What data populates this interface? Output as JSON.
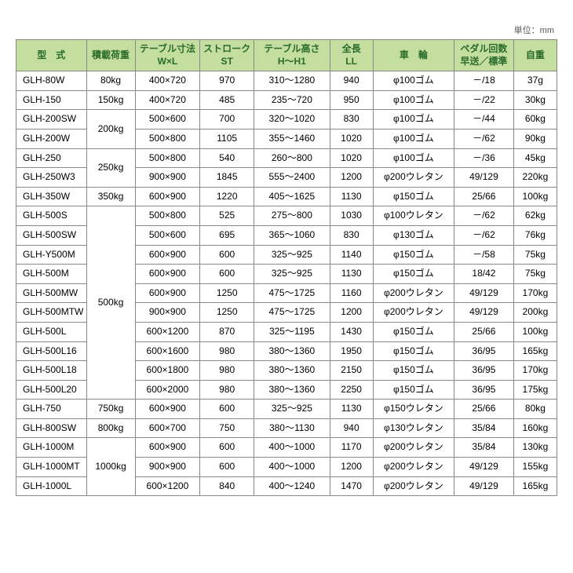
{
  "unit_label": "単位：mm",
  "colors": {
    "header_bg": "#c4dea0",
    "header_text": "#2a6b2a",
    "border": "#888888",
    "background": "#ffffff"
  },
  "columns": [
    {
      "key": "model",
      "label": "型　式"
    },
    {
      "key": "load",
      "label": "積載荷重"
    },
    {
      "key": "table_size",
      "label": "テーブル寸法\nW×L"
    },
    {
      "key": "stroke",
      "label": "ストローク\nST"
    },
    {
      "key": "table_height",
      "label": "テーブル高さ\nH～H1"
    },
    {
      "key": "length",
      "label": "全長\nLL"
    },
    {
      "key": "wheel",
      "label": "車　輪"
    },
    {
      "key": "pedal",
      "label": "ペダル回数\n早送／標準"
    },
    {
      "key": "weight",
      "label": "自重"
    }
  ],
  "rows": [
    {
      "model": "GLH-80W",
      "load": "80kg",
      "table_size": "400×720",
      "stroke": "970",
      "table_height": "310～1280",
      "length": "940",
      "wheel": "φ100ゴム",
      "pedal": "－/18",
      "weight": "37g"
    },
    {
      "model": "GLH-150",
      "load": "150kg",
      "table_size": "400×720",
      "stroke": "485",
      "table_height": "235～720",
      "length": "950",
      "wheel": "φ100ゴム",
      "pedal": "－/22",
      "weight": "30kg"
    },
    {
      "model": "GLH-200SW",
      "load": "200kg",
      "load_rowspan": 2,
      "table_size": "500×600",
      "stroke": "700",
      "table_height": "320～1020",
      "length": "830",
      "wheel": "φ100ゴム",
      "pedal": "－/44",
      "weight": "60kg"
    },
    {
      "model": "GLH-200W",
      "table_size": "500×800",
      "stroke": "1105",
      "table_height": "355～1460",
      "length": "1020",
      "wheel": "φ100ゴム",
      "pedal": "－/62",
      "weight": "90kg"
    },
    {
      "model": "GLH-250",
      "load": "250kg",
      "load_rowspan": 2,
      "table_size": "500×800",
      "stroke": "540",
      "table_height": "260～800",
      "length": "1020",
      "wheel": "φ100ゴム",
      "pedal": "－/36",
      "weight": "45kg"
    },
    {
      "model": "GLH-250W3",
      "table_size": "900×900",
      "stroke": "1845",
      "table_height": "555～2400",
      "length": "1200",
      "wheel": "φ200ウレタン",
      "pedal": "49/129",
      "weight": "220kg"
    },
    {
      "model": "GLH-350W",
      "load": "350kg",
      "table_size": "600×900",
      "stroke": "1220",
      "table_height": "405～1625",
      "length": "1130",
      "wheel": "φ150ゴム",
      "pedal": "25/66",
      "weight": "100kg"
    },
    {
      "model": "GLH-500S",
      "load": "500kg",
      "load_rowspan": 10,
      "table_size": "500×800",
      "stroke": "525",
      "table_height": "275～800",
      "length": "1030",
      "wheel": "φ100ウレタン",
      "pedal": "－/62",
      "weight": "62kg"
    },
    {
      "model": "GLH-500SW",
      "table_size": "500×600",
      "stroke": "695",
      "table_height": "365～1060",
      "length": "830",
      "wheel": "φ130ゴム",
      "pedal": "－/62",
      "weight": "76kg"
    },
    {
      "model": "GLH-Y500M",
      "table_size": "600×900",
      "stroke": "600",
      "table_height": "325～925",
      "length": "1140",
      "wheel": "φ150ゴム",
      "pedal": "－/58",
      "weight": "75kg"
    },
    {
      "model": "GLH-500M",
      "table_size": "600×900",
      "stroke": "600",
      "table_height": "325～925",
      "length": "1130",
      "wheel": "φ150ゴム",
      "pedal": "18/42",
      "weight": "75kg"
    },
    {
      "model": "GLH-500MW",
      "table_size": "600×900",
      "stroke": "1250",
      "table_height": "475～1725",
      "length": "1160",
      "wheel": "φ200ウレタン",
      "pedal": "49/129",
      "weight": "170kg"
    },
    {
      "model": "GLH-500MTW",
      "table_size": "900×900",
      "stroke": "1250",
      "table_height": "475～1725",
      "length": "1200",
      "wheel": "φ200ウレタン",
      "pedal": "49/129",
      "weight": "200kg"
    },
    {
      "model": "GLH-500L",
      "table_size": "600×1200",
      "stroke": "870",
      "table_height": "325～1195",
      "length": "1430",
      "wheel": "φ150ゴム",
      "pedal": "25/66",
      "weight": "100kg"
    },
    {
      "model": "GLH-500L16",
      "table_size": "600×1600",
      "stroke": "980",
      "table_height": "380～1360",
      "length": "1950",
      "wheel": "φ150ゴム",
      "pedal": "36/95",
      "weight": "165kg"
    },
    {
      "model": "GLH-500L18",
      "table_size": "600×1800",
      "stroke": "980",
      "table_height": "380～1360",
      "length": "2150",
      "wheel": "φ150ゴム",
      "pedal": "36/95",
      "weight": "170kg"
    },
    {
      "model": "GLH-500L20",
      "table_size": "600×2000",
      "stroke": "980",
      "table_height": "380～1360",
      "length": "2250",
      "wheel": "φ150ゴム",
      "pedal": "36/95",
      "weight": "175kg"
    },
    {
      "model": "GLH-750",
      "load": "750kg",
      "table_size": "600×900",
      "stroke": "600",
      "table_height": "325～925",
      "length": "1130",
      "wheel": "φ150ウレタン",
      "pedal": "25/66",
      "weight": "80kg"
    },
    {
      "model": "GLH-800SW",
      "load": "800kg",
      "table_size": "600×700",
      "stroke": "750",
      "table_height": "380～1130",
      "length": "940",
      "wheel": "φ130ウレタン",
      "pedal": "35/84",
      "weight": "160kg"
    },
    {
      "model": "GLH-1000M",
      "load": "1000kg",
      "load_rowspan": 3,
      "table_size": "600×900",
      "stroke": "600",
      "table_height": "400～1000",
      "length": "1170",
      "wheel": "φ200ウレタン",
      "pedal": "35/84",
      "weight": "130kg"
    },
    {
      "model": "GLH-1000MT",
      "table_size": "900×900",
      "stroke": "600",
      "table_height": "400～1000",
      "length": "1200",
      "wheel": "φ200ウレタン",
      "pedal": "49/129",
      "weight": "155kg"
    },
    {
      "model": "GLH-1000L",
      "table_size": "600×1200",
      "stroke": "840",
      "table_height": "400～1240",
      "length": "1470",
      "wheel": "φ200ウレタン",
      "pedal": "49/129",
      "weight": "165kg"
    }
  ]
}
